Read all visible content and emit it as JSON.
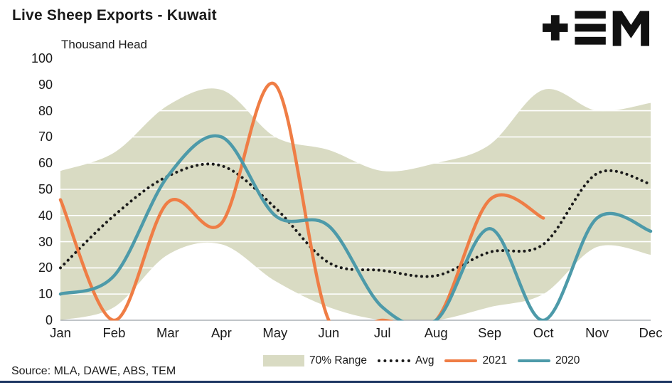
{
  "header": {
    "title": "Live Sheep Exports - Kuwait",
    "units_label": "Thousand Head",
    "logo_alt": "TEM"
  },
  "source": "Source: MLA, DAWE, ABS, TEM",
  "footer": {
    "accent_color": "#1f3864"
  },
  "chart_data": {
    "type": "line",
    "title": "Live Sheep Exports - Kuwait",
    "ylabel": "Thousand Head",
    "xlabel": "",
    "ylim": [
      0,
      100
    ],
    "ytick_step": 10,
    "yticks": [
      0,
      10,
      20,
      30,
      40,
      50,
      60,
      70,
      80,
      90,
      100
    ],
    "grid": "horizontal white gridlines visible over range band",
    "legend_position": "bottom-center",
    "categories": [
      "Jan",
      "Feb",
      "Mar",
      "Apr",
      "May",
      "Jun",
      "Jul",
      "Aug",
      "Sep",
      "Oct",
      "Nov",
      "Dec"
    ],
    "band": {
      "name": "70% Range",
      "color": "#d9dbc3",
      "upper": [
        57,
        64,
        82,
        88,
        70,
        65,
        57,
        60,
        67,
        88,
        80,
        83
      ],
      "lower": [
        0,
        5,
        25,
        29,
        15,
        5,
        0,
        0,
        5,
        10,
        28,
        25
      ]
    },
    "series": [
      {
        "name": "Avg",
        "style": "dotted",
        "color": "#1a1a1a",
        "values": [
          20,
          40,
          55,
          59,
          43,
          22,
          19,
          17,
          26,
          29,
          56,
          52
        ]
      },
      {
        "name": "2021",
        "style": "solid",
        "color": "#ef7d45",
        "values": [
          46,
          0,
          45,
          37,
          90,
          0,
          0,
          0,
          46,
          39,
          null,
          null
        ]
      },
      {
        "name": "2020",
        "style": "solid",
        "color": "#4d9aa9",
        "values": [
          10,
          17,
          55,
          70,
          40,
          36,
          5,
          0,
          35,
          0,
          39,
          34
        ]
      }
    ],
    "legend": [
      {
        "label": "70% Range",
        "type": "band"
      },
      {
        "label": "Avg",
        "type": "dotted"
      },
      {
        "label": "2021",
        "type": "line"
      },
      {
        "label": "2020",
        "type": "line"
      }
    ]
  }
}
